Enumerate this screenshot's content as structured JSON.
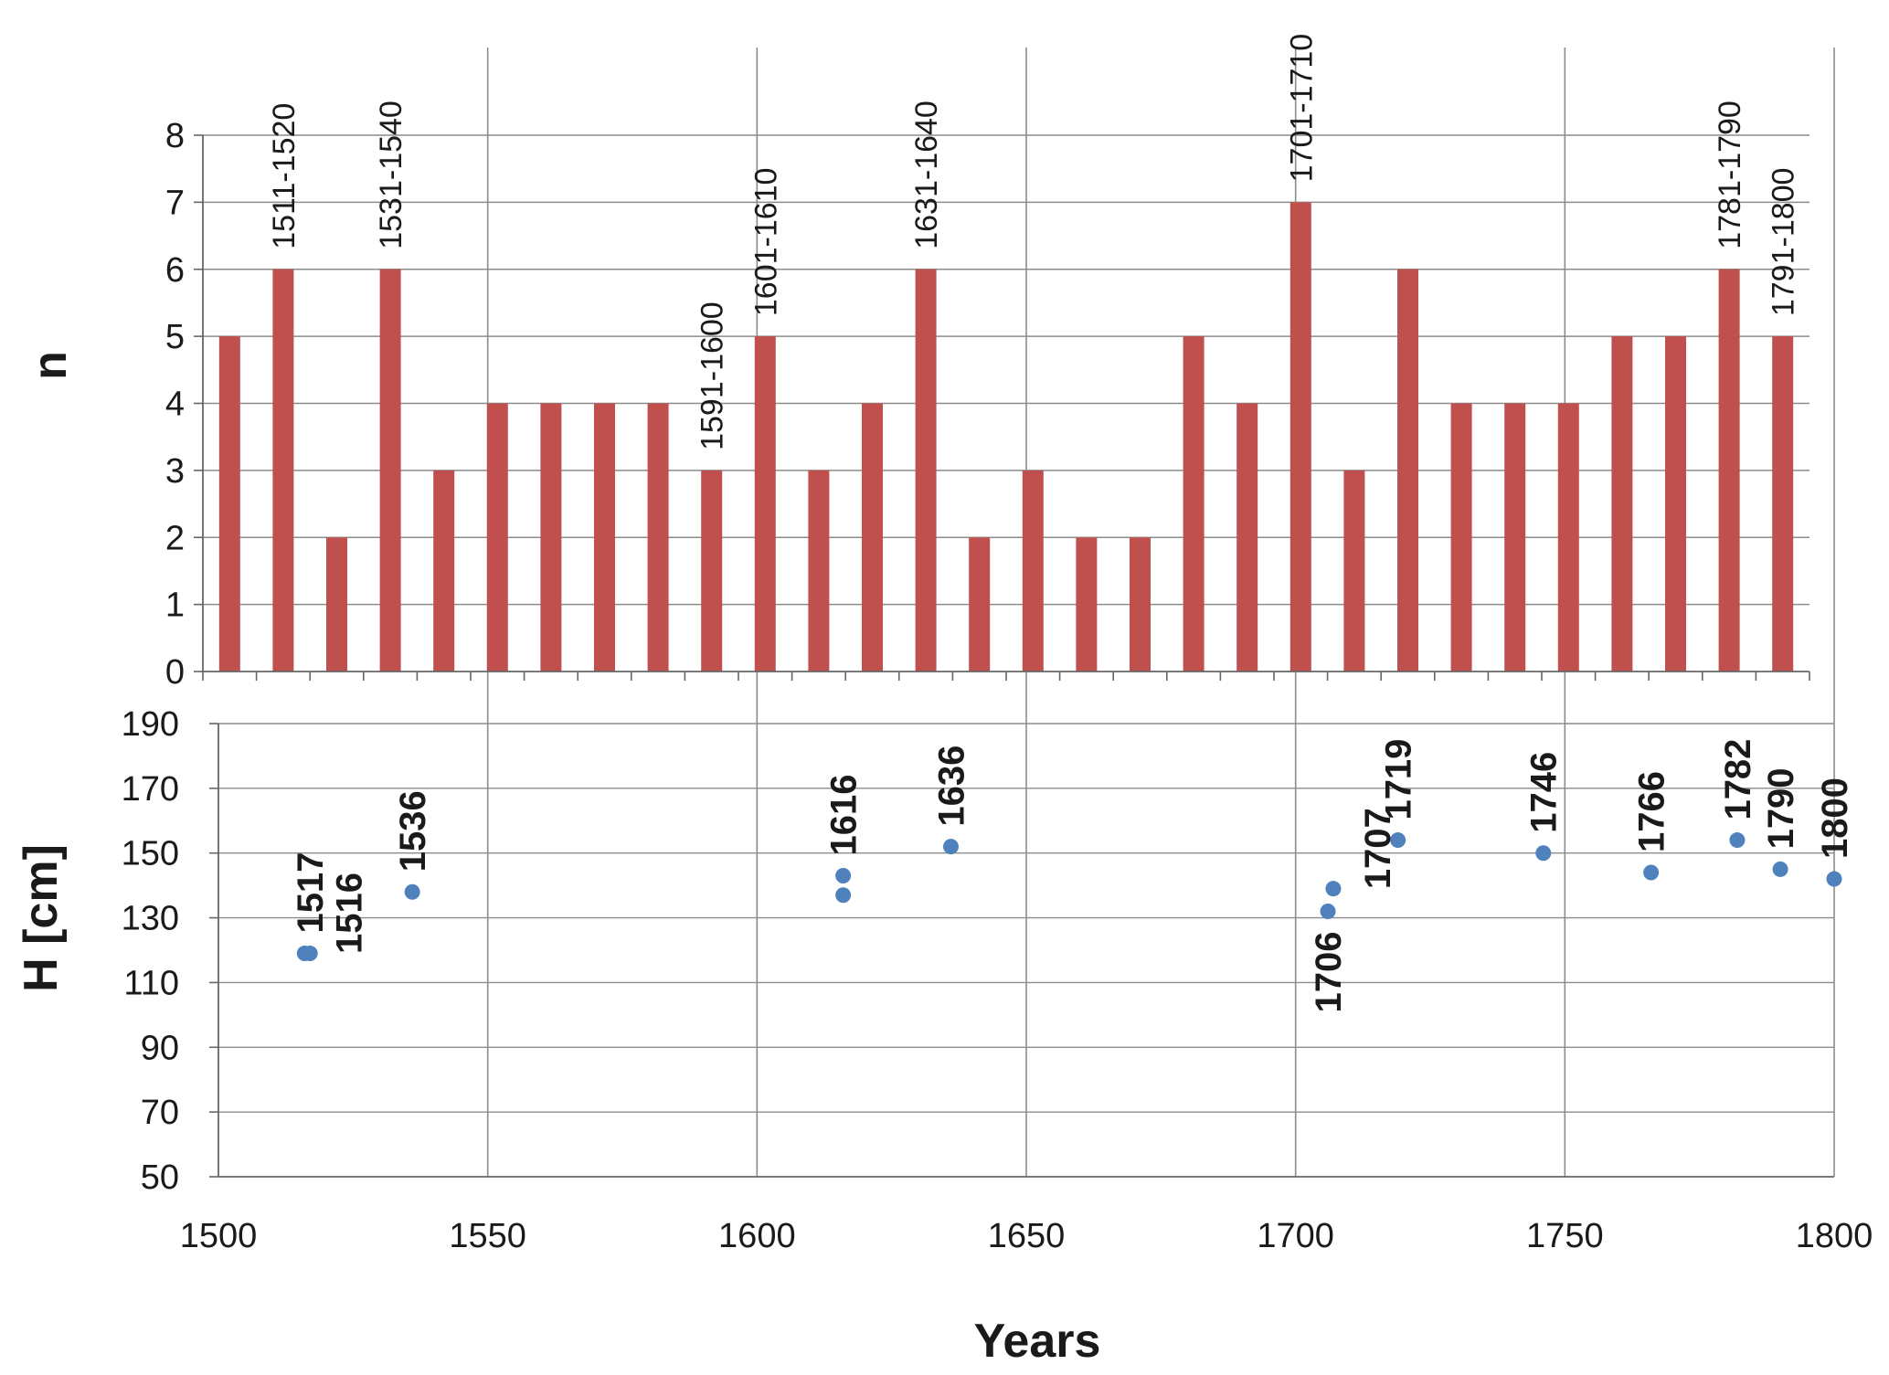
{
  "chart_data": [
    {
      "type": "bar",
      "ylabel": "n",
      "ylim": [
        0,
        8
      ],
      "yticks": [
        0,
        1,
        2,
        3,
        4,
        5,
        6,
        7,
        8
      ],
      "grid": "horizontal and vertical",
      "series": [
        {
          "color": "#c0504d",
          "categories": [
            1505,
            1515,
            1525,
            1535,
            1545,
            1555,
            1565,
            1575,
            1585,
            1595,
            1605,
            1615,
            1625,
            1635,
            1645,
            1655,
            1665,
            1675,
            1685,
            1695,
            1705,
            1715,
            1725,
            1735,
            1745,
            1755,
            1765,
            1775,
            1785,
            1795
          ],
          "values": [
            5,
            6,
            2,
            6,
            3,
            4,
            4,
            4,
            4,
            3,
            5,
            3,
            4,
            6,
            2,
            3,
            2,
            2,
            5,
            4,
            7,
            3,
            6,
            4,
            4,
            4,
            5,
            5,
            6,
            5
          ]
        }
      ],
      "annotations": [
        {
          "x": 1515,
          "text": "1511-1520"
        },
        {
          "x": 1535,
          "text": "1531-1540"
        },
        {
          "x": 1595,
          "text": "1591-1600"
        },
        {
          "x": 1605,
          "text": "1601-1610"
        },
        {
          "x": 1635,
          "text": "1631-1640"
        },
        {
          "x": 1705,
          "text": "1701-1710"
        },
        {
          "x": 1785,
          "text": "1781-1790"
        },
        {
          "x": 1795,
          "text": "1791-1800"
        }
      ]
    },
    {
      "type": "scatter",
      "xlabel": "Years",
      "ylabel": "H [cm]",
      "xlim": [
        1500,
        1800
      ],
      "ylim": [
        50,
        190
      ],
      "xticks": [
        1500,
        1550,
        1600,
        1650,
        1700,
        1750,
        1800
      ],
      "yticks": [
        50,
        70,
        90,
        110,
        130,
        150,
        170,
        190
      ],
      "grid": "horizontal and vertical",
      "series": [
        {
          "color": "#4f81bd",
          "x": [
            1516,
            1517,
            1536,
            1616,
            1616,
            1636,
            1706,
            1707,
            1719,
            1746,
            1766,
            1782,
            1790,
            1800
          ],
          "y": [
            119,
            119,
            138,
            137,
            143,
            152,
            132,
            139,
            154,
            150,
            144,
            154,
            145,
            142
          ]
        }
      ],
      "point_labels": [
        {
          "x": 1517,
          "y": 119,
          "text": "1517",
          "pos": "above"
        },
        {
          "x": 1516,
          "y": 119,
          "text": "1516",
          "pos": "right"
        },
        {
          "x": 1536,
          "y": 138,
          "text": "1536",
          "pos": "above"
        },
        {
          "x": 1616,
          "y": 143,
          "text": "1616",
          "pos": "above"
        },
        {
          "x": 1636,
          "y": 152,
          "text": "1636",
          "pos": "above"
        },
        {
          "x": 1706,
          "y": 132,
          "text": "1706",
          "pos": "below"
        },
        {
          "x": 1707,
          "y": 139,
          "text": "1707",
          "pos": "right"
        },
        {
          "x": 1719,
          "y": 154,
          "text": "1719",
          "pos": "above"
        },
        {
          "x": 1746,
          "y": 150,
          "text": "1746",
          "pos": "above"
        },
        {
          "x": 1766,
          "y": 144,
          "text": "1766",
          "pos": "above"
        },
        {
          "x": 1782,
          "y": 154,
          "text": "1782",
          "pos": "above"
        },
        {
          "x": 1790,
          "y": 145,
          "text": "1790",
          "pos": "above"
        },
        {
          "x": 1800,
          "y": 142,
          "text": "1800",
          "pos": "above"
        }
      ]
    }
  ]
}
